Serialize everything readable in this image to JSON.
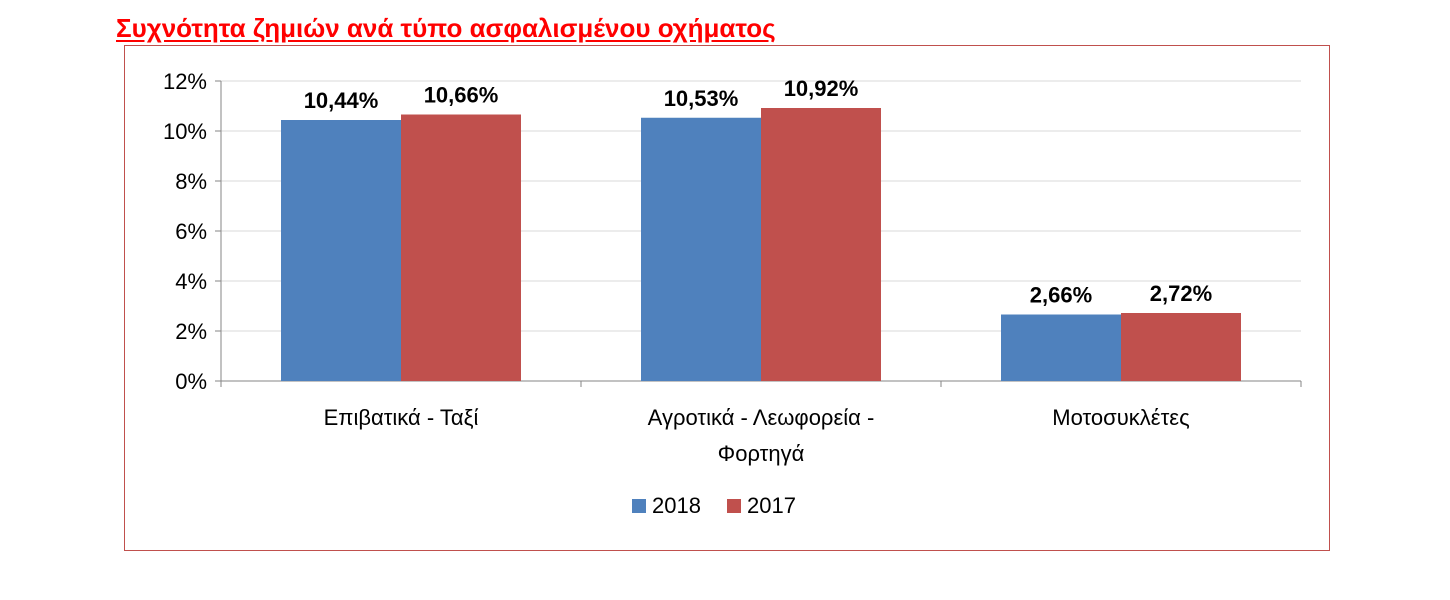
{
  "page": {
    "title": "Συχνότητα ζημιών ανά τύπο ασφαλισμένου οχήματος"
  },
  "colors": {
    "title": "#ff0000",
    "frame": "#c0504d",
    "grid": "#d9d9d9",
    "axis": "#868686"
  },
  "chart_data": {
    "type": "bar",
    "title": "Συχνότητα ζημιών ανά τύπο ασφαλισμένου οχήματος",
    "categories": [
      [
        "Επιβατικά - Ταξί"
      ],
      [
        "Αγροτικά - Λεωφορεία -",
        "Φορτηγά"
      ],
      [
        "Μοτοσυκλέτες"
      ]
    ],
    "series": [
      {
        "name": "2018",
        "color": "#4f81bd",
        "values": [
          10.44,
          10.53,
          2.66
        ],
        "labels": [
          "10,44%",
          "10,53%",
          "2,66%"
        ]
      },
      {
        "name": "2017",
        "color": "#c0504d",
        "values": [
          10.66,
          10.92,
          2.72
        ],
        "labels": [
          "10,66%",
          "10,92%",
          "2,72%"
        ]
      }
    ],
    "ylim": [
      0,
      12
    ],
    "yticks": [
      {
        "value": 0,
        "label": "0%"
      },
      {
        "value": 2,
        "label": "2%"
      },
      {
        "value": 4,
        "label": "4%"
      },
      {
        "value": 6,
        "label": "6%"
      },
      {
        "value": 8,
        "label": "8%"
      },
      {
        "value": 10,
        "label": "10%"
      },
      {
        "value": 12,
        "label": "12%"
      }
    ],
    "grid": true,
    "legend": "bottom-center",
    "xlabel": "",
    "ylabel": ""
  }
}
